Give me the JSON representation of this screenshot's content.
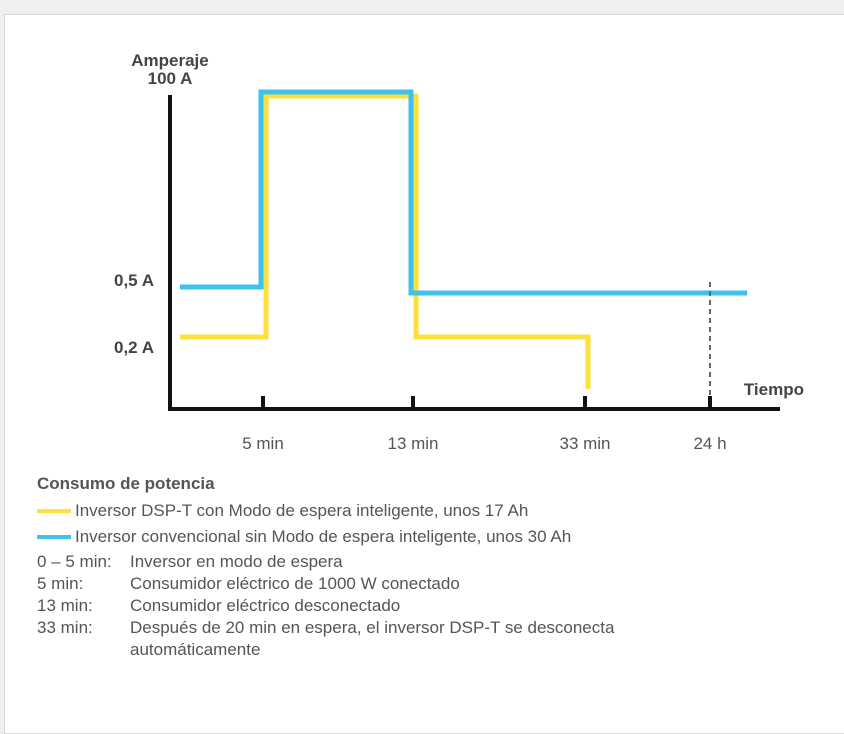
{
  "chart_data": {
    "type": "line",
    "xlabel": "Tiempo",
    "ylabel": "Amperaje",
    "x_ticks": [
      "5 min",
      "13 min",
      "33 min",
      "24 h"
    ],
    "y_ticks": [
      "0,2 A",
      "0,5 A",
      "100 A"
    ],
    "series": [
      {
        "name": "Inversor DSP-T con Modo de espera inteligente, unos 17 Ah",
        "color": "#fde03a",
        "points": [
          {
            "t": "0 min",
            "i": "0,2 A"
          },
          {
            "t": "5 min",
            "i": "0,2 A"
          },
          {
            "t": "5 min",
            "i": "100 A"
          },
          {
            "t": "13 min",
            "i": "100 A"
          },
          {
            "t": "13 min",
            "i": "0,2 A"
          },
          {
            "t": "33 min",
            "i": "0,2 A"
          },
          {
            "t": "33 min",
            "i": "0 A"
          }
        ]
      },
      {
        "name": "Inversor convencional sin Modo de espera inteligente, unos 30 Ah",
        "color": "#3ec1ec",
        "points": [
          {
            "t": "0 min",
            "i": "0,5 A"
          },
          {
            "t": "5 min",
            "i": "0,5 A"
          },
          {
            "t": "5 min",
            "i": "100 A"
          },
          {
            "t": "13 min",
            "i": "100 A"
          },
          {
            "t": "13 min",
            "i": "0,5 A"
          },
          {
            "t": "24 h",
            "i": "0,5 A"
          }
        ]
      }
    ],
    "marker_line": "24 h"
  },
  "legend": {
    "title": "Consumo de potencia",
    "items": [
      {
        "label": "Inversor DSP-T con Modo de espera inteligente, unos 17 Ah",
        "color": "#fde03a"
      },
      {
        "label": "Inversor convencional sin Modo de espera inteligente, unos 30 Ah",
        "color": "#3ec1ec"
      }
    ]
  },
  "notes": [
    {
      "label": "0 – 5 min:",
      "text": "Inversor en modo de espera"
    },
    {
      "label": "5 min:",
      "text": "Consumidor eléctrico de 1000 W conectado"
    },
    {
      "label": "13 min:",
      "text": "Consumidor eléctrico desconectado"
    },
    {
      "label": "33 min:",
      "text": "Después de 20 min en espera, el inversor DSP-T se desconecta automáticamente"
    }
  ]
}
